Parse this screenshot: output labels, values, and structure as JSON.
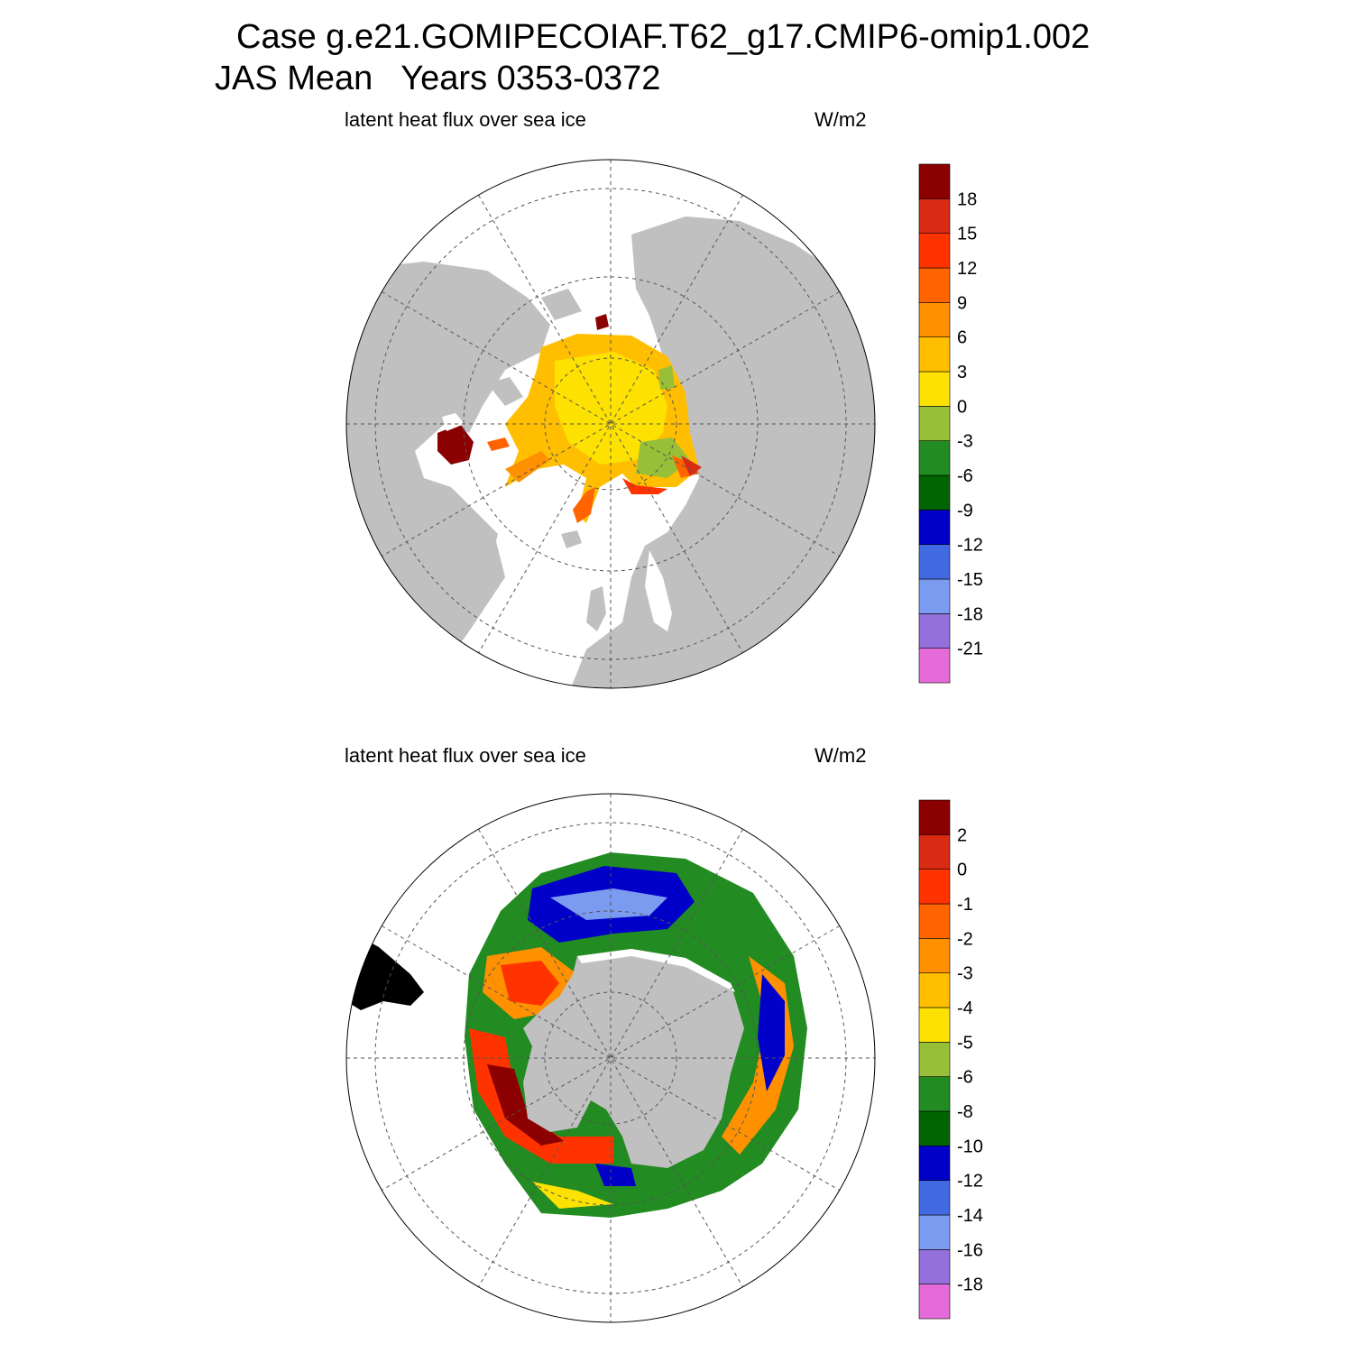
{
  "header": {
    "title_line1": "Case g.e21.GOMIPECOIAF.T62_g17.CMIP6-omip1.002",
    "title_line2": "JAS Mean   Years 0353-0372"
  },
  "panels": [
    {
      "hemisphere": "north",
      "variable_label": "latent heat flux over sea ice",
      "units_label": "W/m2",
      "colorbar": {
        "colors": [
          "#e46bd9",
          "#9370db",
          "#7b9bf0",
          "#4169e1",
          "#0000c8",
          "#006400",
          "#228b22",
          "#98bf38",
          "#fde100",
          "#ffbf00",
          "#ff9100",
          "#ff6400",
          "#ff3300",
          "#d92a14",
          "#8b0000"
        ],
        "tick_labels": [
          "-21",
          "-18",
          "-15",
          "-12",
          "-9",
          "-6",
          "-3",
          "0",
          "3",
          "6",
          "9",
          "12",
          "15",
          "18"
        ]
      }
    },
    {
      "hemisphere": "south",
      "variable_label": "latent heat flux over sea ice",
      "units_label": "W/m2",
      "colorbar": {
        "colors": [
          "#e46bd9",
          "#9370db",
          "#7b9bf0",
          "#4169e1",
          "#0000c8",
          "#006400",
          "#228b22",
          "#98bf38",
          "#fde100",
          "#ffbf00",
          "#ff9100",
          "#ff6400",
          "#ff3300",
          "#d92a14",
          "#8b0000"
        ],
        "tick_labels": [
          "-18",
          "-16",
          "-14",
          "-12",
          "-10",
          "-8",
          "-6",
          "-5",
          "-4",
          "-3",
          "-2",
          "-1",
          "0",
          "2"
        ]
      }
    }
  ],
  "style": {
    "land_color": "#c0c0c0",
    "grid_color": "#555555"
  }
}
